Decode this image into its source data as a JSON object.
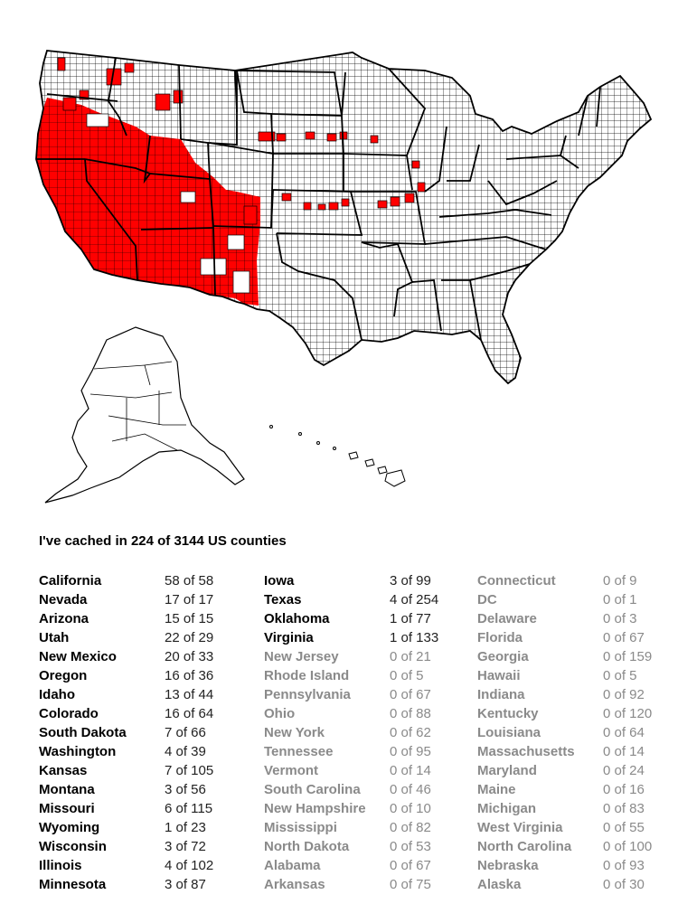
{
  "colors": {
    "visited": "#ff0000",
    "unvisited": "#ffffff",
    "border": "#000000",
    "muted_text": "#8a8a8a"
  },
  "summary": "I've cached in 224 of 3144 US counties",
  "columns": [
    [
      {
        "state": "California",
        "count": "58 of 58",
        "visited": true
      },
      {
        "state": "Nevada",
        "count": "17 of 17",
        "visited": true
      },
      {
        "state": "Arizona",
        "count": "15 of 15",
        "visited": true
      },
      {
        "state": "Utah",
        "count": "22 of 29",
        "visited": true
      },
      {
        "state": "New Mexico",
        "count": "20 of 33",
        "visited": true
      },
      {
        "state": "Oregon",
        "count": "16 of 36",
        "visited": true
      },
      {
        "state": "Idaho",
        "count": "13 of 44",
        "visited": true
      },
      {
        "state": "Colorado",
        "count": "16 of 64",
        "visited": true
      },
      {
        "state": "South Dakota",
        "count": "7 of 66",
        "visited": true
      },
      {
        "state": "Washington",
        "count": "4 of 39",
        "visited": true
      },
      {
        "state": "Kansas",
        "count": "7 of 105",
        "visited": true
      },
      {
        "state": "Montana",
        "count": "3 of 56",
        "visited": true
      },
      {
        "state": "Missouri",
        "count": "6 of 115",
        "visited": true
      },
      {
        "state": "Wyoming",
        "count": "1 of 23",
        "visited": true
      },
      {
        "state": "Wisconsin",
        "count": "3 of 72",
        "visited": true
      },
      {
        "state": "Illinois",
        "count": "4 of 102",
        "visited": true
      },
      {
        "state": "Minnesota",
        "count": "3 of 87",
        "visited": true
      }
    ],
    [
      {
        "state": "Iowa",
        "count": "3 of 99",
        "visited": true
      },
      {
        "state": "Texas",
        "count": "4 of 254",
        "visited": true
      },
      {
        "state": "Oklahoma",
        "count": "1 of 77",
        "visited": true
      },
      {
        "state": "Virginia",
        "count": "1 of 133",
        "visited": true
      },
      {
        "state": "New Jersey",
        "count": "0 of 21",
        "visited": false
      },
      {
        "state": "Rhode Island",
        "count": "0 of 5",
        "visited": false
      },
      {
        "state": "Pennsylvania",
        "count": "0 of 67",
        "visited": false
      },
      {
        "state": "Ohio",
        "count": "0 of 88",
        "visited": false
      },
      {
        "state": "New York",
        "count": "0 of 62",
        "visited": false
      },
      {
        "state": "Tennessee",
        "count": "0 of 95",
        "visited": false
      },
      {
        "state": "Vermont",
        "count": "0 of 14",
        "visited": false
      },
      {
        "state": "South Carolina",
        "count": "0 of 46",
        "visited": false
      },
      {
        "state": "New Hampshire",
        "count": "0 of 10",
        "visited": false
      },
      {
        "state": "Mississippi",
        "count": "0 of 82",
        "visited": false
      },
      {
        "state": "North Dakota",
        "count": "0 of 53",
        "visited": false
      },
      {
        "state": "Alabama",
        "count": "0 of 67",
        "visited": false
      },
      {
        "state": "Arkansas",
        "count": "0 of 75",
        "visited": false
      }
    ],
    [
      {
        "state": "Connecticut",
        "count": "0 of 9",
        "visited": false
      },
      {
        "state": "DC",
        "count": "0 of 1",
        "visited": false
      },
      {
        "state": "Delaware",
        "count": "0 of 3",
        "visited": false
      },
      {
        "state": "Florida",
        "count": "0 of 67",
        "visited": false
      },
      {
        "state": "Georgia",
        "count": "0 of 159",
        "visited": false
      },
      {
        "state": "Hawaii",
        "count": "0 of 5",
        "visited": false
      },
      {
        "state": "Indiana",
        "count": "0 of 92",
        "visited": false
      },
      {
        "state": "Kentucky",
        "count": "0 of 120",
        "visited": false
      },
      {
        "state": "Louisiana",
        "count": "0 of 64",
        "visited": false
      },
      {
        "state": "Massachusetts",
        "count": "0 of 14",
        "visited": false
      },
      {
        "state": "Maryland",
        "count": "0 of 24",
        "visited": false
      },
      {
        "state": "Maine",
        "count": "0 of 16",
        "visited": false
      },
      {
        "state": "Michigan",
        "count": "0 of 83",
        "visited": false
      },
      {
        "state": "West Virginia",
        "count": "0 of 55",
        "visited": false
      },
      {
        "state": "North Carolina",
        "count": "0 of 100",
        "visited": false
      },
      {
        "state": "Nebraska",
        "count": "0 of 93",
        "visited": false
      },
      {
        "state": "Alaska",
        "count": "0 of 30",
        "visited": false
      }
    ]
  ]
}
